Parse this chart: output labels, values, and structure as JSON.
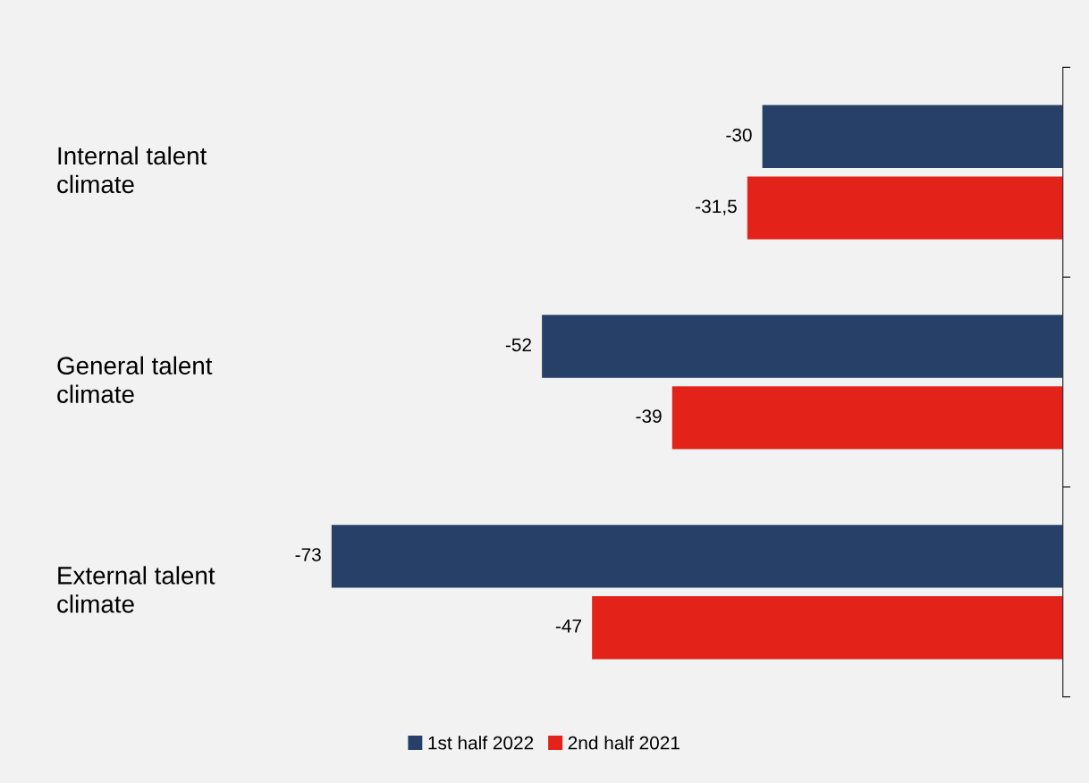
{
  "chart_data": {
    "type": "bar",
    "orientation": "horizontal",
    "categories": [
      "Internal talent climate",
      "General talent climate",
      "External talent climate"
    ],
    "series": [
      {
        "name": "1st half 2022",
        "color": "#264068",
        "values": [
          -30,
          -52,
          -73
        ],
        "value_labels": [
          "-30",
          "-52",
          "-73"
        ]
      },
      {
        "name": "2nd half 2021",
        "color": "#e32219",
        "values": [
          -31.5,
          -39,
          -47
        ],
        "value_labels": [
          "-31,5",
          "-39",
          "-47"
        ]
      }
    ],
    "grid": false,
    "legend": "bottom"
  }
}
